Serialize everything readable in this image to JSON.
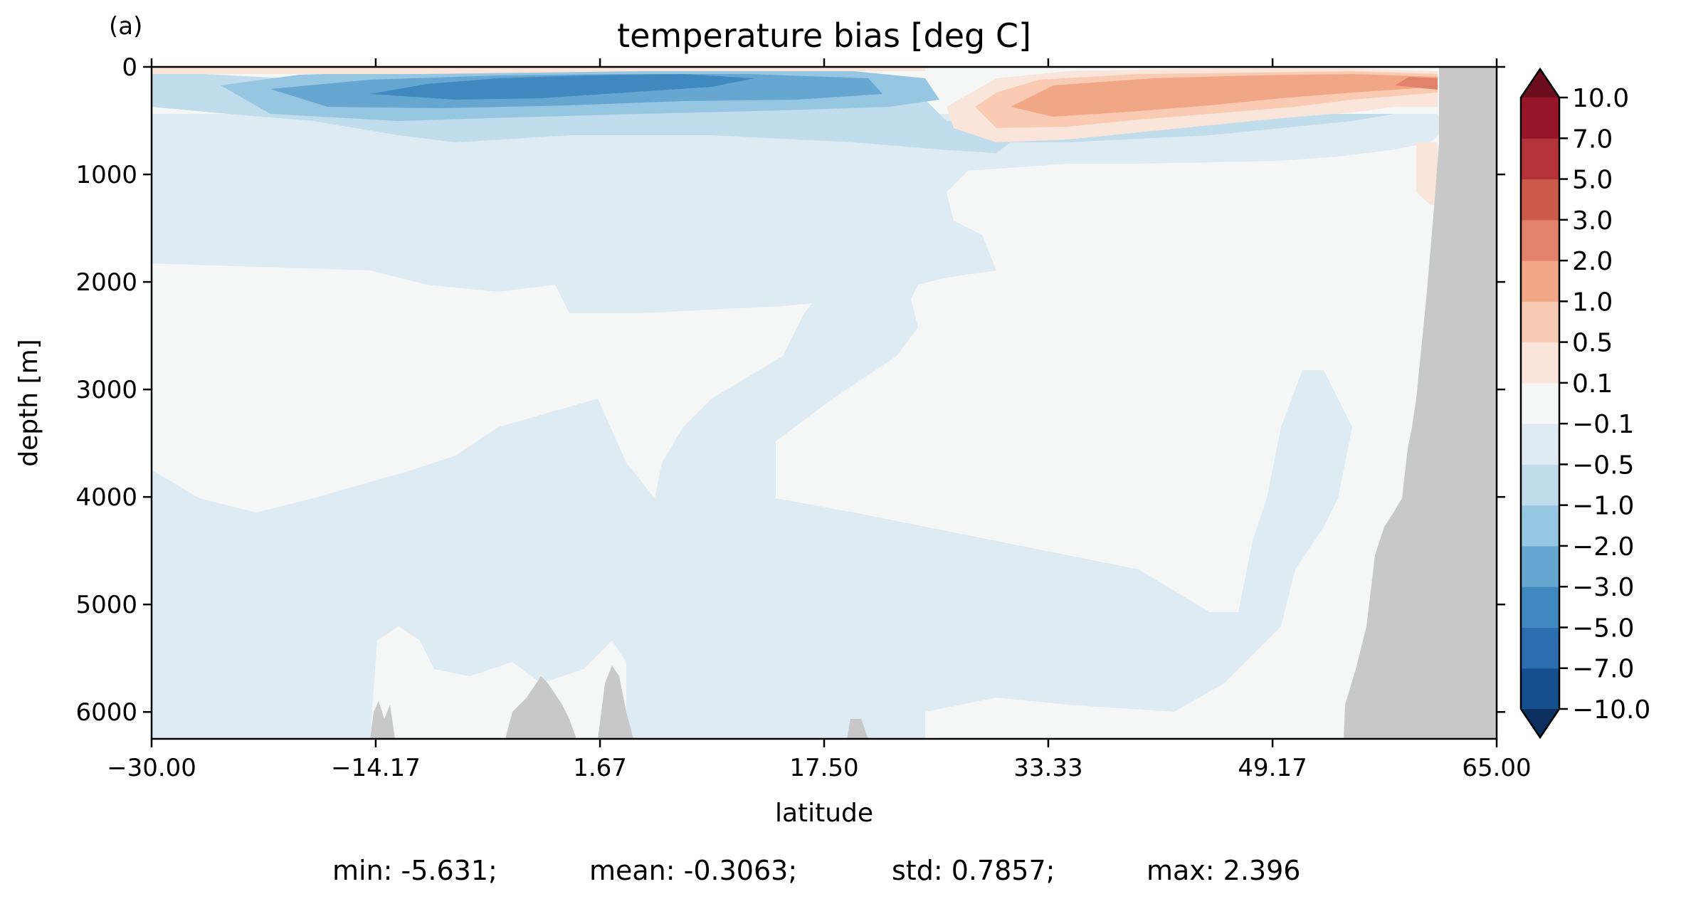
{
  "panel_label": "(a)",
  "stats": {
    "min": "min: -5.631;",
    "mean": "mean: -0.3063;",
    "std": "std: 0.7857;",
    "max": "max: 2.396"
  },
  "colors": {
    "land": "#c8c8c8",
    "axis": "#000000"
  },
  "chart_data": {
    "type": "contour",
    "title": "temperature bias [deg C]",
    "xlabel": "latitude",
    "ylabel": "depth [m]",
    "xlim": [
      -30.0,
      65.0
    ],
    "ylim": [
      6250,
      0
    ],
    "y_inverted": true,
    "x_ticks": [
      -30.0,
      -14.17,
      1.67,
      17.5,
      33.33,
      49.17,
      65.0
    ],
    "x_tick_labels": [
      "−30.00",
      "−14.17",
      "1.67",
      "17.50",
      "33.33",
      "49.17",
      "65.00"
    ],
    "y_ticks": [
      0,
      1000,
      2000,
      3000,
      4000,
      5000,
      6000
    ],
    "y_tick_labels": [
      "0",
      "1000",
      "2000",
      "3000",
      "4000",
      "5000",
      "6000"
    ],
    "colorbar": {
      "extend": "both",
      "levels": [
        -10.0,
        -7.0,
        -5.0,
        -3.0,
        -2.0,
        -1.0,
        -0.5,
        -0.1,
        0.1,
        0.5,
        1.0,
        2.0,
        3.0,
        5.0,
        7.0,
        10.0
      ],
      "tick_labels": [
        "−10.0",
        "−7.0",
        "−5.0",
        "−3.0",
        "−2.0",
        "−1.0",
        "−0.5",
        "−0.1",
        "0.1",
        "0.5",
        "1.0",
        "2.0",
        "3.0",
        "5.0",
        "7.0",
        "10.0"
      ],
      "colors": [
        "#0b3a6e",
        "#154e8c",
        "#2b6fb0",
        "#4088c0",
        "#65a7d0",
        "#96c6e1",
        "#c1dceb",
        "#dfebf3",
        "#f5f6f6",
        "#f9e5da",
        "#f9cbb3",
        "#f1a686",
        "#e2826a",
        "#cc5a4a",
        "#b53239",
        "#961529",
        "#6b0d1f"
      ],
      "under_color": "#0b2f5e",
      "over_color": "#6b0d1f"
    }
  }
}
